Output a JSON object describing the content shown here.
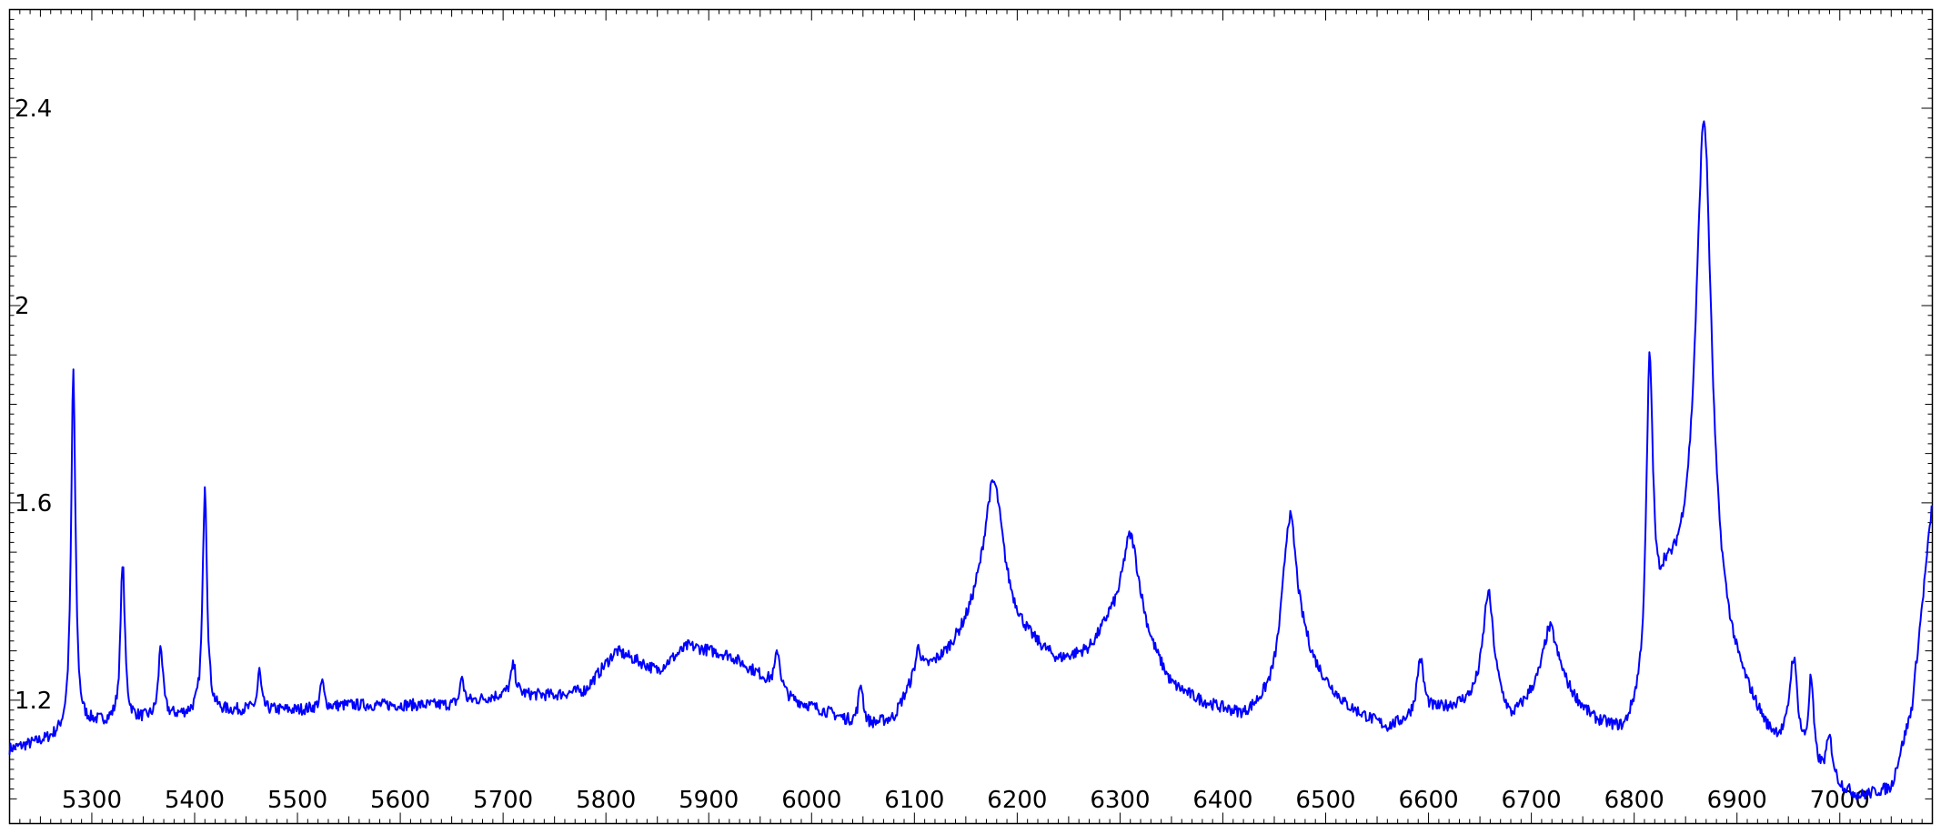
{
  "chart_data": {
    "type": "line",
    "title": "",
    "xlabel": "",
    "ylabel": "",
    "xlim": [
      5220,
      7090
    ],
    "ylim": [
      0.95,
      2.6
    ],
    "grid": false,
    "x_ticks": [
      5300,
      5400,
      5500,
      5600,
      5700,
      5800,
      5900,
      6000,
      6100,
      6200,
      6300,
      6400,
      6500,
      6600,
      6700,
      6800,
      6900,
      7000
    ],
    "x_tick_labels": [
      "5300",
      "5400",
      "5500",
      "5600",
      "5700",
      "5800",
      "5900",
      "6000",
      "6100",
      "6200",
      "6300",
      "6400",
      "6500",
      "6600",
      "6700",
      "6800",
      "6900",
      "7000"
    ],
    "y_ticks": [
      1.2,
      1.6,
      2.0,
      2.4
    ],
    "y_tick_labels": [
      "1.2",
      "1.6",
      "2",
      "2.4"
    ],
    "series": [
      {
        "color": "#0000ff",
        "baseline": [
          [
            5220,
            1.1
          ],
          [
            5260,
            1.12
          ],
          [
            5300,
            1.15
          ],
          [
            5350,
            1.16
          ],
          [
            5400,
            1.17
          ],
          [
            5450,
            1.18
          ],
          [
            5500,
            1.18
          ],
          [
            5550,
            1.19
          ],
          [
            5600,
            1.19
          ],
          [
            5650,
            1.19
          ],
          [
            5700,
            1.21
          ],
          [
            5750,
            1.21
          ],
          [
            5780,
            1.22
          ],
          [
            5810,
            1.3
          ],
          [
            5850,
            1.26
          ],
          [
            5880,
            1.31
          ],
          [
            5920,
            1.29
          ],
          [
            5950,
            1.25
          ],
          [
            5980,
            1.2
          ],
          [
            6020,
            1.17
          ],
          [
            6050,
            1.14
          ],
          [
            6080,
            1.16
          ],
          [
            6100,
            1.24
          ],
          [
            6130,
            1.28
          ],
          [
            6160,
            1.34
          ],
          [
            6200,
            1.32
          ],
          [
            6240,
            1.27
          ],
          [
            6270,
            1.29
          ],
          [
            6290,
            1.34
          ],
          [
            6320,
            1.32
          ],
          [
            6350,
            1.22
          ],
          [
            6380,
            1.19
          ],
          [
            6420,
            1.16
          ],
          [
            6450,
            1.19
          ],
          [
            6480,
            1.26
          ],
          [
            6520,
            1.18
          ],
          [
            6560,
            1.14
          ],
          [
            6600,
            1.17
          ],
          [
            6640,
            1.19
          ],
          [
            6660,
            1.22
          ],
          [
            6680,
            1.15
          ],
          [
            6700,
            1.19
          ],
          [
            6730,
            1.21
          ],
          [
            6760,
            1.15
          ],
          [
            6790,
            1.12
          ],
          [
            6810,
            1.18
          ],
          [
            6830,
            1.4
          ],
          [
            6860,
            1.43
          ],
          [
            6880,
            1.32
          ],
          [
            6900,
            1.23
          ],
          [
            6930,
            1.12
          ],
          [
            6960,
            1.06
          ],
          [
            6990,
            1.02
          ],
          [
            7020,
            1.0
          ],
          [
            7050,
            1.02
          ],
          [
            7070,
            1.18
          ],
          [
            7090,
            1.6
          ]
        ],
        "peaks": [
          [
            5282,
            1.87,
            2.5
          ],
          [
            5330,
            1.48,
            2.5
          ],
          [
            5367,
            1.31,
            2.5
          ],
          [
            5410,
            1.64,
            2.5
          ],
          [
            5463,
            1.26,
            2
          ],
          [
            5524,
            1.24,
            2
          ],
          [
            5660,
            1.25,
            2
          ],
          [
            5710,
            1.27,
            3
          ],
          [
            5967,
            1.3,
            3
          ],
          [
            6048,
            1.23,
            3
          ],
          [
            6104,
            1.3,
            3
          ],
          [
            6177,
            1.64,
            12
          ],
          [
            6310,
            1.53,
            10
          ],
          [
            6465,
            1.57,
            9
          ],
          [
            6592,
            1.28,
            4
          ],
          [
            6658,
            1.41,
            6
          ],
          [
            6718,
            1.34,
            9
          ],
          [
            6815,
            1.87,
            4
          ],
          [
            6868,
            2.37,
            9
          ],
          [
            6955,
            1.27,
            5
          ],
          [
            6972,
            1.22,
            3
          ],
          [
            6990,
            1.11,
            4
          ]
        ],
        "noise": 0.012
      }
    ]
  }
}
